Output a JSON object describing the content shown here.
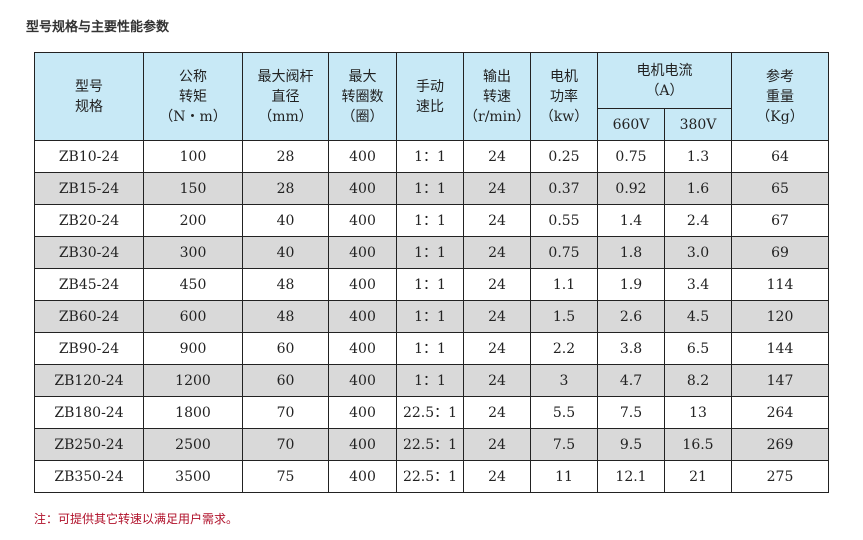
{
  "title": "型号规格与主要性能参数",
  "header": {
    "model": [
      "型号",
      "规格"
    ],
    "torque": [
      "公称",
      "转矩",
      "（N・m）"
    ],
    "stem": [
      "最大阀杆",
      "直径",
      "（mm）"
    ],
    "turns": [
      "最大",
      "转圈数",
      "（圈）"
    ],
    "ratio": [
      "手动",
      "速比"
    ],
    "speed": [
      "输出",
      "转速",
      "（r/min）"
    ],
    "power": [
      "电机",
      "功率",
      "（kw）"
    ],
    "current": [
      "电机电流",
      "（A）"
    ],
    "v660": "660V",
    "v380": "380V",
    "weight": [
      "参考",
      "重量",
      "（Kg）"
    ]
  },
  "rows": [
    [
      "ZB10-24",
      "100",
      "28",
      "400",
      "1：1",
      "24",
      "0.25",
      "0.75",
      "1.3",
      "64"
    ],
    [
      "ZB15-24",
      "150",
      "28",
      "400",
      "1：1",
      "24",
      "0.37",
      "0.92",
      "1.6",
      "65"
    ],
    [
      "ZB20-24",
      "200",
      "40",
      "400",
      "1：1",
      "24",
      "0.55",
      "1.4",
      "2.4",
      "67"
    ],
    [
      "ZB30-24",
      "300",
      "40",
      "400",
      "1：1",
      "24",
      "0.75",
      "1.8",
      "3.0",
      "69"
    ],
    [
      "ZB45-24",
      "450",
      "48",
      "400",
      "1：1",
      "24",
      "1.1",
      "1.9",
      "3.4",
      "114"
    ],
    [
      "ZB60-24",
      "600",
      "48",
      "400",
      "1：1",
      "24",
      "1.5",
      "2.6",
      "4.5",
      "120"
    ],
    [
      "ZB90-24",
      "900",
      "60",
      "400",
      "1：1",
      "24",
      "2.2",
      "3.8",
      "6.5",
      "144"
    ],
    [
      "ZB120-24",
      "1200",
      "60",
      "400",
      "1：1",
      "24",
      "3",
      "4.7",
      "8.2",
      "147"
    ],
    [
      "ZB180-24",
      "1800",
      "70",
      "400",
      "22.5：1",
      "24",
      "5.5",
      "7.5",
      "13",
      "264"
    ],
    [
      "ZB250-24",
      "2500",
      "70",
      "400",
      "22.5：1",
      "24",
      "7.5",
      "9.5",
      "16.5",
      "269"
    ],
    [
      "ZB350-24",
      "3500",
      "75",
      "400",
      "22.5：1",
      "24",
      "11",
      "12.1",
      "21",
      "275"
    ]
  ],
  "note": "注：可提供其它转速以满足用户需求。",
  "colors": {
    "header_bg": "#c8e9f6",
    "alt_row_bg": "#d9d9d9",
    "note": "#b0102a"
  }
}
